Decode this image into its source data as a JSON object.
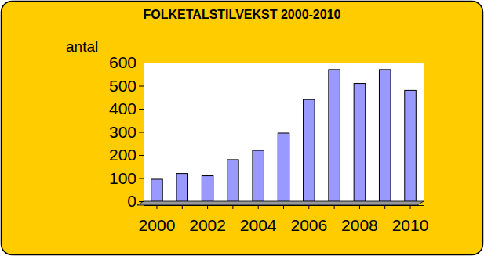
{
  "chart_data": {
    "type": "bar",
    "title": "FOLKETALSTILVEKST 2000-2010",
    "y_label": "antal",
    "categories": [
      "2000",
      null,
      "2002",
      null,
      "2004",
      null,
      "2006",
      null,
      "2008",
      null,
      "2010"
    ],
    "values": [
      95,
      120,
      110,
      180,
      220,
      295,
      440,
      570,
      510,
      570,
      480
    ],
    "color": "#9999ff",
    "ylim": [
      0,
      600
    ],
    "yticks": [
      0,
      100,
      200,
      300,
      400,
      500,
      600
    ],
    "grid": false
  }
}
